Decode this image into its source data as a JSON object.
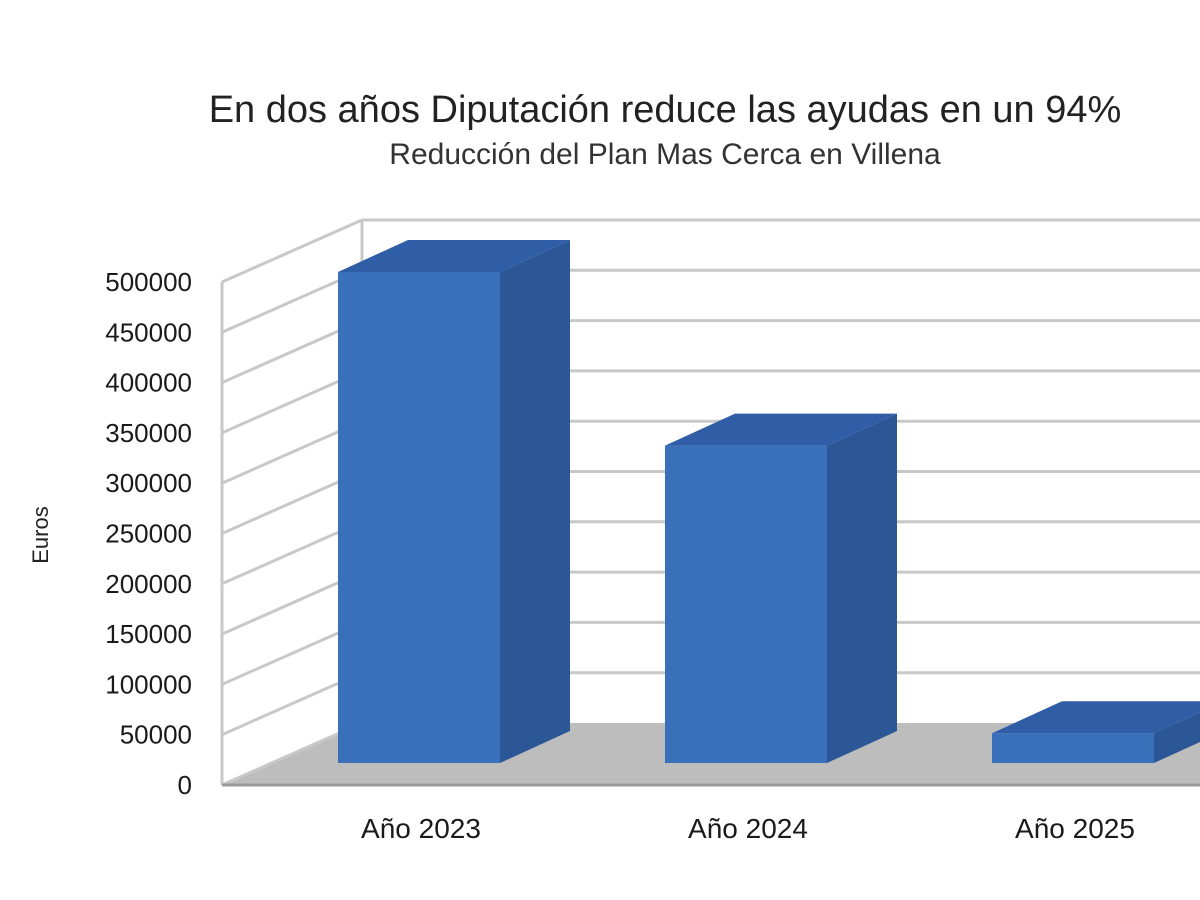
{
  "chart_data": {
    "type": "bar",
    "title": "En dos años Diputación reduce las ayudas en un 94%",
    "subtitle": "Reducción del Plan Mas Cerca en Villena",
    "xlabel": "",
    "ylabel": "Euros",
    "categories": [
      "Año 2023",
      "Año 2024",
      "Año 2025"
    ],
    "values": [
      495000,
      320000,
      30000
    ],
    "ylim": [
      0,
      500000
    ],
    "yticks": [
      "0",
      "50000",
      "100000",
      "150000",
      "200000",
      "250000",
      "300000",
      "350000",
      "400000",
      "450000",
      "500000"
    ],
    "ytick_values": [
      0,
      50000,
      100000,
      150000,
      200000,
      250000,
      300000,
      350000,
      400000,
      450000,
      500000
    ],
    "grid": true,
    "legend": "none",
    "style": "3d-column",
    "colors": {
      "bar_front": "#3a6fba",
      "bar_side": "#2c5797",
      "bar_top": "#2f5ea6",
      "floor": "#bdbdbd",
      "grid": "#c8c8c8",
      "background": "#ffffff"
    }
  }
}
